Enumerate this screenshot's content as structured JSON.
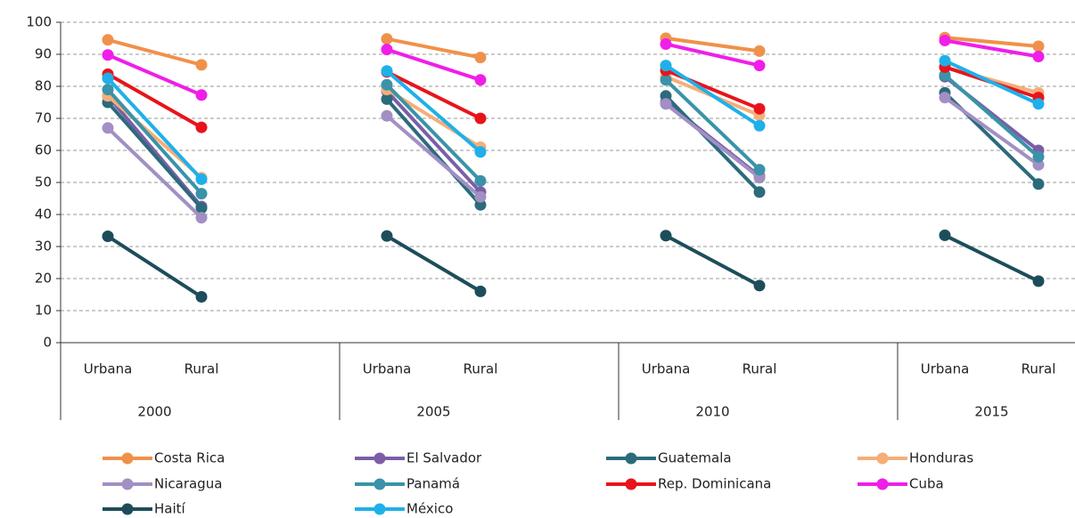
{
  "chart_data": {
    "type": "line",
    "groups": [
      "2000",
      "2005",
      "2010",
      "2015"
    ],
    "categories": [
      "Urbana",
      "Rural",
      "Urbana",
      "Rural",
      "Urbana",
      "Rural",
      "Urbana",
      "Rural"
    ],
    "ylim": [
      0,
      100
    ],
    "yticks": [
      0,
      10,
      20,
      30,
      40,
      50,
      60,
      70,
      80,
      90,
      100
    ],
    "grid": true,
    "legend": "bottom",
    "series": [
      {
        "name": "Costa Rica",
        "color": "#f0914a",
        "values": [
          94.5,
          86.7,
          94.8,
          89,
          95,
          91,
          95.2,
          92.5
        ]
      },
      {
        "name": "El Salvador",
        "color": "#7b5ea7",
        "values": [
          77,
          42.5,
          78.5,
          47,
          75,
          52,
          83,
          60
        ]
      },
      {
        "name": "Guatemala",
        "color": "#2b6b7c",
        "values": [
          75,
          42,
          76,
          43,
          77,
          47,
          78,
          49.5
        ]
      },
      {
        "name": "Honduras",
        "color": "#f5ae78",
        "values": [
          77,
          51.5,
          79,
          61,
          83,
          71,
          86,
          78
        ]
      },
      {
        "name": "Nicaragua",
        "color": "#a28fc4",
        "values": [
          67,
          39,
          70.8,
          45.5,
          74.5,
          51.5,
          76.5,
          55.5
        ]
      },
      {
        "name": "Panamá",
        "color": "#3a93a8",
        "values": [
          79,
          46.5,
          80.5,
          50.5,
          82,
          54,
          83.5,
          58
        ]
      },
      {
        "name": "Rep. Dominicana",
        "color": "#e8141b",
        "values": [
          83.8,
          67.2,
          84.5,
          70,
          85,
          73,
          86,
          76.5
        ]
      },
      {
        "name": "Cuba",
        "color": "#f01ee8",
        "values": [
          89.8,
          77.3,
          91.5,
          82,
          93.2,
          86.5,
          94.3,
          89.3
        ]
      },
      {
        "name": "Haití",
        "color": "#1d4d5b",
        "values": [
          33.2,
          14.3,
          33.3,
          16,
          33.4,
          17.8,
          33.5,
          19.2
        ]
      },
      {
        "name": "México",
        "color": "#1fb0ea",
        "values": [
          82.5,
          51,
          84.8,
          59.5,
          86.5,
          67.7,
          88,
          74.5
        ]
      }
    ]
  }
}
